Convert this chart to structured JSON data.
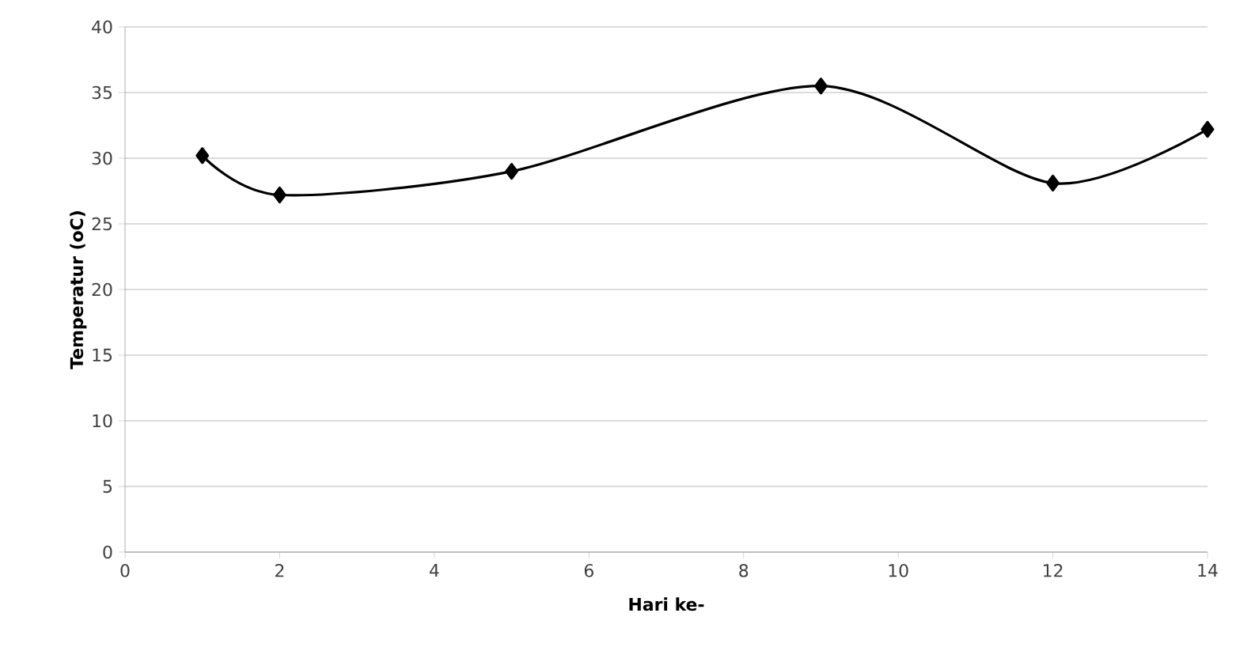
{
  "chart_data": {
    "type": "line",
    "xlabel": "Hari ke-",
    "ylabel": "Temperatur (oC)",
    "x": [
      1,
      2,
      5,
      9,
      12,
      14
    ],
    "series": [
      {
        "color": "#000000",
        "values": [
          30.2,
          27.2,
          29,
          35.5,
          28.1,
          32.2
        ]
      }
    ],
    "xlim": [
      0,
      14
    ],
    "xticks": [
      0,
      2,
      4,
      6,
      8,
      10,
      12,
      14
    ],
    "ylim": [
      0,
      40
    ],
    "yticks": [
      0,
      5,
      10,
      15,
      20,
      25,
      30,
      35,
      40
    ],
    "grid": "y",
    "marker": "diamond",
    "line_style": "solid"
  }
}
